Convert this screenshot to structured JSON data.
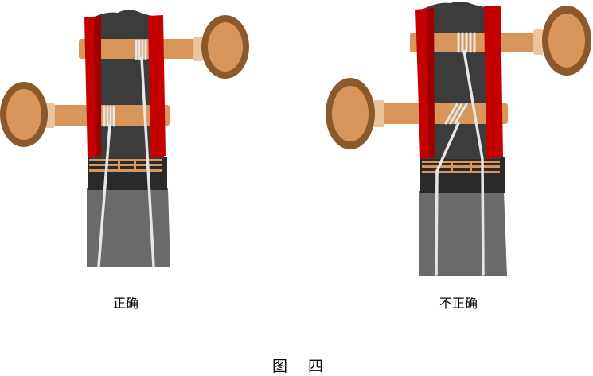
{
  "panels": {
    "correct": {
      "label": "正确"
    },
    "incorrect": {
      "label": "不正确"
    }
  },
  "figure": {
    "caption": "图   四"
  },
  "colors": {
    "frame_red": "#c40000",
    "frame_red_dark": "#9c0000",
    "neck_dark": "#3c3c3c",
    "neck_black": "#2a2a2a",
    "body_gray": "#6a6a6a",
    "peg_wood": "#d8965a",
    "peg_rim": "#8a5a2c",
    "peg_ring": "#ecc39a",
    "string": "#e6e6e6"
  }
}
